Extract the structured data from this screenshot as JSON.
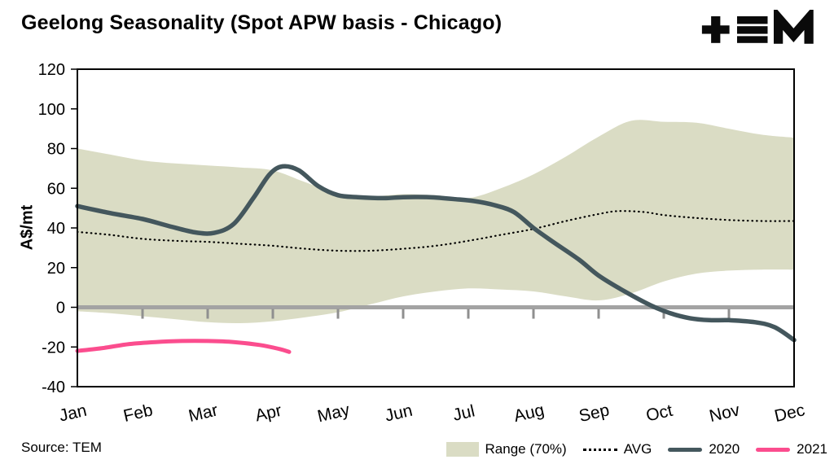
{
  "header": {
    "title": "Geelong Seasonality (Spot APW basis - Chicago)"
  },
  "source": "Source: TEM",
  "legend": {
    "items": [
      {
        "label": "Range (70%)",
        "type": "band",
        "color": "#dadcc4"
      },
      {
        "label": "AVG",
        "type": "dotted",
        "color": "#000000"
      },
      {
        "label": "2020",
        "type": "line",
        "color": "#44575d"
      },
      {
        "label": "2021",
        "type": "line",
        "color": "#fb4d8e"
      }
    ]
  },
  "chart_data": {
    "type": "line",
    "title": "Geelong Seasonality (Spot APW basis - Chicago)",
    "ylabel": "A$/mt",
    "ylim": [
      -40,
      120
    ],
    "yticks": [
      120,
      100,
      80,
      60,
      40,
      20,
      0,
      -20,
      -40
    ],
    "x_categories": [
      "Jan",
      "Feb",
      "Mar",
      "Apr",
      "May",
      "Jun",
      "Jul",
      "Aug",
      "Sep",
      "Oct",
      "Nov",
      "Dec"
    ],
    "x_note": "x values are fractional month indices, 0 = Jan, 11 = Dec",
    "grid": false,
    "legend_position": "bottom",
    "zero_line": {
      "value": 0,
      "color": "#a3a3a3"
    },
    "band": {
      "name": "Range (70%)",
      "color": "#dadcc4",
      "upper": [
        [
          0,
          80
        ],
        [
          0.5,
          77
        ],
        [
          1,
          74
        ],
        [
          1.5,
          72.5
        ],
        [
          2,
          71.5
        ],
        [
          2.5,
          70.5
        ],
        [
          3,
          69
        ],
        [
          3.5,
          63
        ],
        [
          4,
          57.5
        ],
        [
          4.5,
          56
        ],
        [
          5,
          57
        ],
        [
          5.5,
          56.5
        ],
        [
          6,
          55
        ],
        [
          6.5,
          60
        ],
        [
          7,
          67
        ],
        [
          7.5,
          76
        ],
        [
          8,
          86
        ],
        [
          8.5,
          94
        ],
        [
          9,
          93.5
        ],
        [
          9.5,
          93
        ],
        [
          10,
          90
        ],
        [
          10.5,
          87
        ],
        [
          11,
          85.5
        ]
      ],
      "lower": [
        [
          0,
          -2
        ],
        [
          0.5,
          -3
        ],
        [
          1,
          -4.5
        ],
        [
          1.5,
          -6
        ],
        [
          2,
          -7.5
        ],
        [
          2.5,
          -8
        ],
        [
          3,
          -7
        ],
        [
          3.5,
          -5
        ],
        [
          4,
          -2.5
        ],
        [
          4.5,
          1.5
        ],
        [
          5,
          5.5
        ],
        [
          5.5,
          8
        ],
        [
          6,
          9.5
        ],
        [
          6.5,
          9
        ],
        [
          7,
          8
        ],
        [
          7.5,
          5.5
        ],
        [
          8,
          3.5
        ],
        [
          8.5,
          7
        ],
        [
          9,
          13
        ],
        [
          9.5,
          17
        ],
        [
          10,
          18.5
        ],
        [
          10.5,
          19
        ],
        [
          11,
          19
        ]
      ]
    },
    "series": [
      {
        "name": "AVG",
        "style": "dotted",
        "color": "#000000",
        "width": 2.2,
        "points": [
          [
            0,
            38
          ],
          [
            0.5,
            36.5
          ],
          [
            1,
            34.5
          ],
          [
            1.5,
            33.5
          ],
          [
            2,
            33
          ],
          [
            2.5,
            32
          ],
          [
            3,
            31
          ],
          [
            3.5,
            29.5
          ],
          [
            4,
            28.5
          ],
          [
            4.5,
            28.5
          ],
          [
            5,
            29.5
          ],
          [
            5.5,
            31
          ],
          [
            6,
            33.5
          ],
          [
            6.5,
            36.5
          ],
          [
            7,
            39.5
          ],
          [
            7.5,
            43.5
          ],
          [
            8,
            47
          ],
          [
            8.3,
            48.5
          ],
          [
            8.7,
            48
          ],
          [
            9,
            46.5
          ],
          [
            9.5,
            45
          ],
          [
            10,
            44
          ],
          [
            10.5,
            43.5
          ],
          [
            11,
            43.5
          ]
        ]
      },
      {
        "name": "2020",
        "style": "solid",
        "color": "#44575d",
        "width": 5.5,
        "points": [
          [
            0,
            51
          ],
          [
            0.5,
            47.5
          ],
          [
            1,
            44.5
          ],
          [
            1.4,
            41
          ],
          [
            1.8,
            37.8
          ],
          [
            2.1,
            37.5
          ],
          [
            2.4,
            42
          ],
          [
            2.7,
            55
          ],
          [
            2.95,
            67
          ],
          [
            3.15,
            71
          ],
          [
            3.4,
            69
          ],
          [
            3.7,
            61
          ],
          [
            4,
            56.5
          ],
          [
            4.3,
            55.5
          ],
          [
            4.7,
            55
          ],
          [
            5,
            55.5
          ],
          [
            5.4,
            55.5
          ],
          [
            5.8,
            54.5
          ],
          [
            6.1,
            53.5
          ],
          [
            6.4,
            51.5
          ],
          [
            6.7,
            48
          ],
          [
            7,
            40
          ],
          [
            7.3,
            33
          ],
          [
            7.7,
            24
          ],
          [
            8,
            16
          ],
          [
            8.4,
            8
          ],
          [
            8.8,
            1
          ],
          [
            9.1,
            -3
          ],
          [
            9.4,
            -5.5
          ],
          [
            9.7,
            -6.5
          ],
          [
            10,
            -6.5
          ],
          [
            10.4,
            -7.5
          ],
          [
            10.7,
            -10
          ],
          [
            11,
            -16.5
          ]
        ]
      },
      {
        "name": "2021",
        "style": "solid",
        "color": "#fb4d8e",
        "width": 5,
        "points": [
          [
            0,
            -22
          ],
          [
            0.4,
            -20.5
          ],
          [
            0.8,
            -18.5
          ],
          [
            1.2,
            -17.5
          ],
          [
            1.6,
            -17
          ],
          [
            2,
            -17
          ],
          [
            2.4,
            -17.5
          ],
          [
            2.8,
            -19
          ],
          [
            3.1,
            -21
          ],
          [
            3.25,
            -22.5
          ]
        ]
      }
    ]
  }
}
